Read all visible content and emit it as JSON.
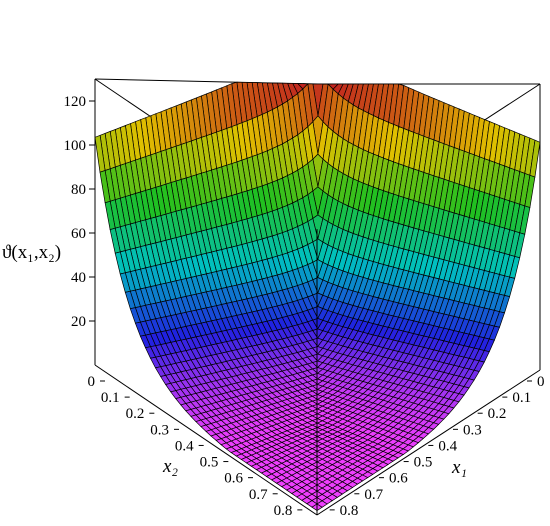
{
  "chart_data": {
    "type": "surface3d",
    "title": "",
    "xlabel": "x₁",
    "ylabel": "x₂",
    "zlabel": "ϑ(x₁,x₂)",
    "x_range": [
      0,
      0.9
    ],
    "y_range": [
      0,
      0.9
    ],
    "z_range": [
      0,
      130
    ],
    "x_ticks": [
      "0",
      "0.1",
      "0.2",
      "0.3",
      "0.4",
      "0.5",
      "0.6",
      "0.7",
      "0.8"
    ],
    "y_ticks": [
      "0",
      "0.1",
      "0.2",
      "0.3",
      "0.4",
      "0.5",
      "0.6",
      "0.7",
      "0.8"
    ],
    "z_ticks": [
      "20",
      "40",
      "60",
      "80",
      "100",
      "120"
    ],
    "z_tick_values": [
      20,
      40,
      60,
      80,
      100,
      120
    ],
    "surface_samples": [
      {
        "x1": 0.0,
        "x2": 0.0,
        "z": 130
      },
      {
        "x1": 0.9,
        "x2": 0.0,
        "z": 100
      },
      {
        "x1": 0.0,
        "x2": 0.9,
        "z": 100
      },
      {
        "x1": 0.5,
        "x2": 0.5,
        "z": 8
      },
      {
        "x1": 0.9,
        "x2": 0.9,
        "z": 0
      }
    ],
    "colormap": [
      "#ff40ff",
      "#2020e0",
      "#00c0c0",
      "#20c020",
      "#e0c000",
      "#c02020"
    ],
    "grid": false
  }
}
